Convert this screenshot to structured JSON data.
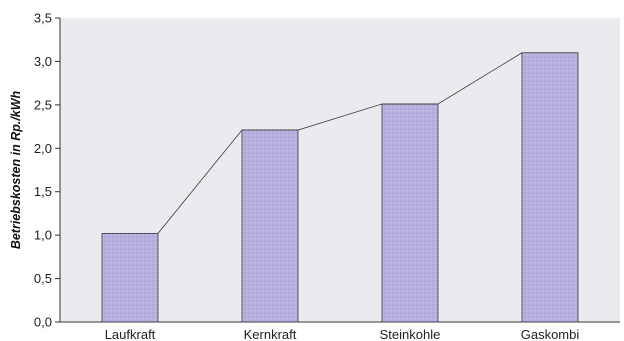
{
  "chart_data": {
    "type": "bar",
    "categories": [
      "Laufkraft",
      "Kernkraft",
      "Steinkohle",
      "Gaskombi"
    ],
    "values": [
      1.02,
      2.21,
      2.51,
      3.1
    ],
    "ylabel": "Betriebskosten in Rp./kWh",
    "xlabel": "",
    "ylim": [
      0,
      3.5
    ],
    "yticks": [
      "0,0",
      "0,5",
      "1,0",
      "1,5",
      "2,0",
      "2,5",
      "3,0",
      "3,5"
    ],
    "grid": false,
    "connecting_line": true,
    "colors": {
      "plot_background": "#ebebef",
      "bar_fill": "#b7b0df",
      "bar_stroke": "#3a3a3a",
      "line": "#3a3a3a"
    }
  }
}
